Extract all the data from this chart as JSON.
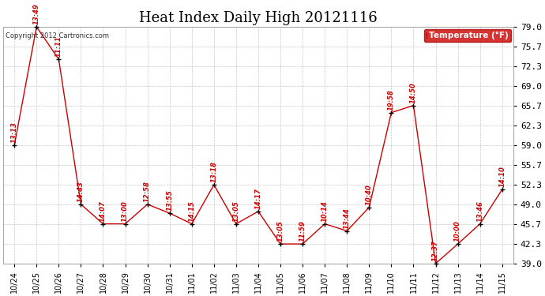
{
  "title": "Heat Index Daily High 20121116",
  "copyright_text": "Copyright 2012 Cartronics.com",
  "legend_label": "Temperature (°F)",
  "x_labels": [
    "10/24",
    "10/25",
    "10/26",
    "10/27",
    "10/28",
    "10/29",
    "10/30",
    "10/31",
    "11/01",
    "11/02",
    "11/03",
    "11/04",
    "11/05",
    "11/06",
    "11/07",
    "11/08",
    "11/09",
    "11/10",
    "11/11",
    "11/12",
    "11/13",
    "11/14",
    "11/15"
  ],
  "y_values": [
    59.0,
    79.0,
    73.5,
    49.0,
    45.7,
    45.7,
    49.0,
    47.5,
    45.7,
    52.3,
    45.7,
    47.8,
    42.3,
    42.3,
    45.7,
    44.5,
    48.5,
    64.5,
    65.7,
    39.0,
    42.3,
    45.7,
    51.5
  ],
  "point_labels": [
    "13:13",
    "13:49",
    "11:11",
    "14:43",
    "14:07",
    "13:00",
    "12:58",
    "13:55",
    "14:15",
    "13:18",
    "13:05",
    "14:17",
    "13:05",
    "11:59",
    "10:14",
    "13:44",
    "10:40",
    "19:58",
    "14:50",
    "12:37",
    "10:00",
    "13:46",
    "14:10"
  ],
  "label_offsets": [
    0,
    0,
    0,
    0,
    0,
    0,
    0,
    0,
    0,
    0,
    0,
    0,
    0,
    0,
    0,
    0,
    0,
    0,
    0,
    0,
    0,
    0,
    0
  ],
  "ylim": [
    39.0,
    79.0
  ],
  "yticks": [
    39.0,
    42.3,
    45.7,
    49.0,
    52.3,
    55.7,
    59.0,
    62.3,
    65.7,
    69.0,
    72.3,
    75.7,
    79.0
  ],
  "line_color": "#cc0000",
  "marker_color": "#000000",
  "label_color": "#cc0000",
  "bg_color": "#ffffff",
  "grid_color": "#c8c8c8",
  "legend_bg": "#cc0000",
  "legend_text_color": "#ffffff",
  "title_fontsize": 13,
  "axis_fontsize": 8,
  "tick_fontsize": 7
}
